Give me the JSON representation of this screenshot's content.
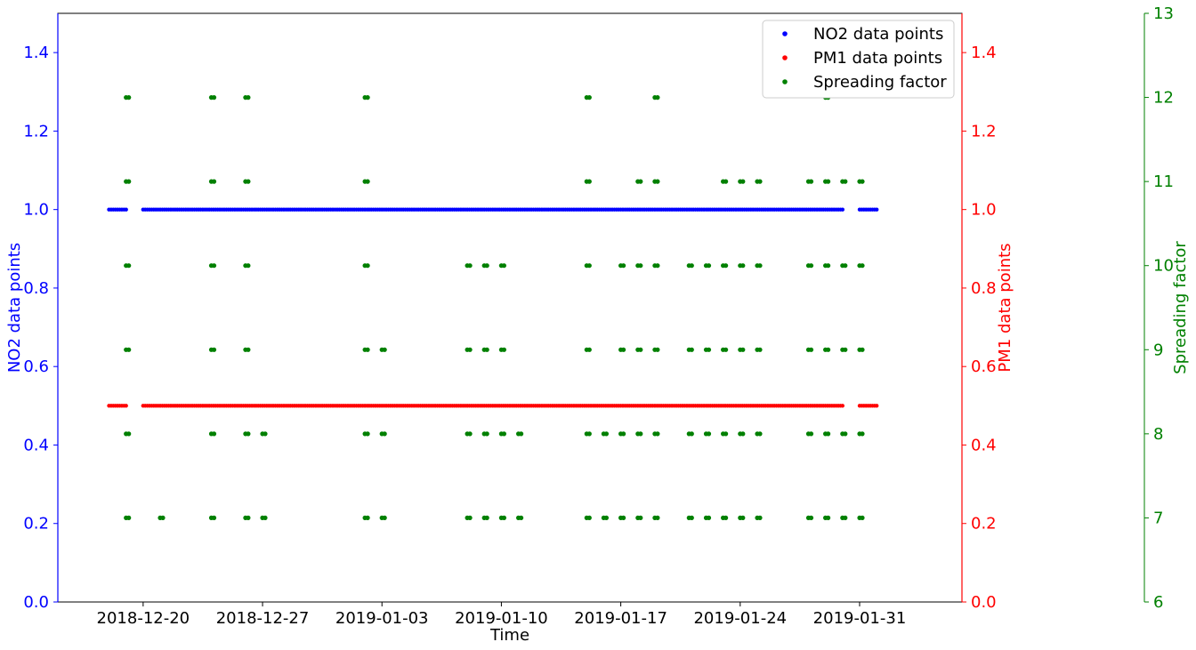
{
  "chart_data": {
    "type": "scatter",
    "x_axis": {
      "label": "Time",
      "ticks": [
        "2018-12-20",
        "2018-12-27",
        "2019-01-03",
        "2019-01-10",
        "2019-01-17",
        "2019-01-24",
        "2019-01-31"
      ],
      "range": [
        "2018-12-15",
        "2019-02-06"
      ]
    },
    "y_axes": [
      {
        "id": "no2",
        "label": "NO2 data points",
        "side": "left",
        "color": "#0000ff",
        "ylim": [
          0,
          1.5
        ],
        "ticks": [
          "0.0",
          "0.2",
          "0.4",
          "0.6",
          "0.8",
          "1.0",
          "1.2",
          "1.4"
        ]
      },
      {
        "id": "pm1",
        "label": "PM1 data points",
        "side": "right",
        "color": "#ff0000",
        "ylim": [
          0,
          1.5
        ],
        "ticks": [
          "0.0",
          "0.2",
          "0.4",
          "0.6",
          "0.8",
          "1.0",
          "1.2",
          "1.4"
        ]
      },
      {
        "id": "sf",
        "label": "Spreading factor",
        "side": "right-outer",
        "color": "#008000",
        "ylim": [
          6,
          13
        ],
        "ticks": [
          "6",
          "7",
          "8",
          "9",
          "10",
          "11",
          "12",
          "13"
        ]
      }
    ],
    "legend": {
      "placement": "top-right",
      "entries": [
        "NO2 data points",
        "PM1 data points",
        "Spreading factor"
      ]
    },
    "grid": false,
    "series": [
      {
        "name": "NO2 data points",
        "axis": "no2",
        "color": "#0000ff",
        "value": 1.0,
        "segments": [
          [
            "2018-12-18",
            "2018-12-19"
          ],
          [
            "2018-12-20",
            "2019-01-30"
          ],
          [
            "2019-01-31",
            "2019-02-01"
          ]
        ]
      },
      {
        "name": "PM1 data points",
        "axis": "pm1",
        "color": "#ff0000",
        "value": 0.5,
        "segments": [
          [
            "2018-12-18",
            "2018-12-19"
          ],
          [
            "2018-12-20",
            "2019-01-30"
          ],
          [
            "2019-01-31",
            "2019-02-01"
          ]
        ]
      },
      {
        "name": "Spreading factor",
        "axis": "sf",
        "color": "#008000",
        "levels": [
          {
            "y": 12,
            "dates": [
              "2018-12-19",
              "2018-12-24",
              "2018-12-26",
              "2019-01-02",
              "2019-01-15",
              "2019-01-19",
              "2019-01-29"
            ]
          },
          {
            "y": 11,
            "dates": [
              "2018-12-19",
              "2018-12-24",
              "2018-12-26",
              "2019-01-02",
              "2019-01-15",
              "2019-01-18",
              "2019-01-19",
              "2019-01-23",
              "2019-01-24",
              "2019-01-25",
              "2019-01-28",
              "2019-01-29",
              "2019-01-30",
              "2019-01-31"
            ]
          },
          {
            "y": 10,
            "dates": [
              "2018-12-19",
              "2018-12-24",
              "2018-12-26",
              "2019-01-02",
              "2019-01-08",
              "2019-01-09",
              "2019-01-10",
              "2019-01-15",
              "2019-01-17",
              "2019-01-18",
              "2019-01-19",
              "2019-01-21",
              "2019-01-22",
              "2019-01-23",
              "2019-01-24",
              "2019-01-25",
              "2019-01-28",
              "2019-01-29",
              "2019-01-30",
              "2019-01-31"
            ]
          },
          {
            "y": 9,
            "dates": [
              "2018-12-19",
              "2018-12-24",
              "2018-12-26",
              "2019-01-02",
              "2019-01-03",
              "2019-01-08",
              "2019-01-09",
              "2019-01-10",
              "2019-01-15",
              "2019-01-17",
              "2019-01-18",
              "2019-01-19",
              "2019-01-21",
              "2019-01-22",
              "2019-01-23",
              "2019-01-24",
              "2019-01-25",
              "2019-01-28",
              "2019-01-29",
              "2019-01-30",
              "2019-01-31"
            ]
          },
          {
            "y": 8,
            "dates": [
              "2018-12-19",
              "2018-12-24",
              "2018-12-26",
              "2018-12-27",
              "2019-01-02",
              "2019-01-03",
              "2019-01-08",
              "2019-01-09",
              "2019-01-10",
              "2019-01-11",
              "2019-01-15",
              "2019-01-16",
              "2019-01-17",
              "2019-01-18",
              "2019-01-19",
              "2019-01-21",
              "2019-01-22",
              "2019-01-23",
              "2019-01-24",
              "2019-01-25",
              "2019-01-28",
              "2019-01-29",
              "2019-01-30",
              "2019-01-31"
            ]
          },
          {
            "y": 7,
            "dates": [
              "2018-12-19",
              "2018-12-21",
              "2018-12-24",
              "2018-12-26",
              "2018-12-27",
              "2019-01-02",
              "2019-01-03",
              "2019-01-08",
              "2019-01-09",
              "2019-01-10",
              "2019-01-11",
              "2019-01-15",
              "2019-01-16",
              "2019-01-17",
              "2019-01-18",
              "2019-01-19",
              "2019-01-21",
              "2019-01-22",
              "2019-01-23",
              "2019-01-24",
              "2019-01-25",
              "2019-01-28",
              "2019-01-29",
              "2019-01-30",
              "2019-01-31"
            ]
          }
        ]
      }
    ]
  }
}
